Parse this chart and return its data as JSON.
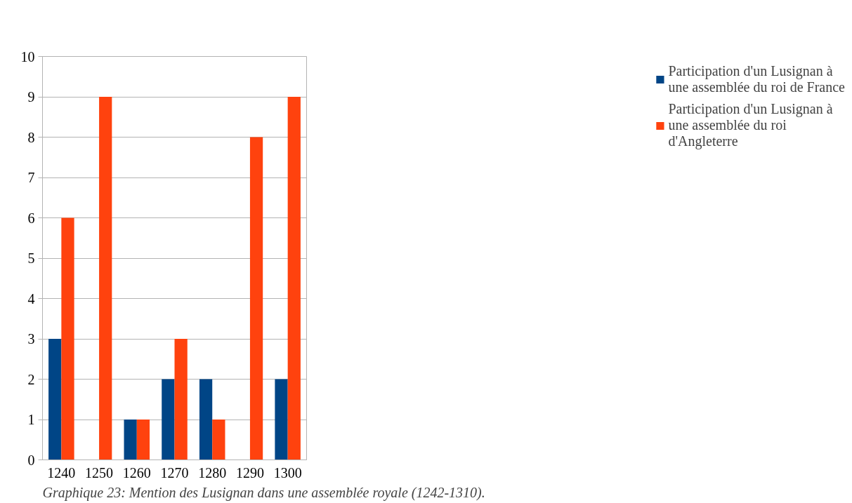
{
  "chart_data": {
    "type": "bar",
    "categories": [
      "1240",
      "1250",
      "1260",
      "1270",
      "1280",
      "1290",
      "1300"
    ],
    "series": [
      {
        "name": "Participation d'un Lusignan à une assemblée du roi de France",
        "color": "#004586",
        "values": [
          3,
          0,
          1,
          2,
          2,
          0,
          2
        ]
      },
      {
        "name": "Participation d'un Lusignan à une assemblée du roi d'Angleterre",
        "color": "#ff420e",
        "values": [
          6,
          9,
          1,
          3,
          1,
          8,
          9
        ]
      }
    ],
    "ylim": [
      0,
      10
    ],
    "yticks": [
      0,
      1,
      2,
      3,
      4,
      5,
      6,
      7,
      8,
      9,
      10
    ],
    "grid": "y",
    "legend": "right",
    "annotations": [
      "Graphique 23: Mention des Lusignan dans une assemblée royale (1242-1310)."
    ]
  }
}
